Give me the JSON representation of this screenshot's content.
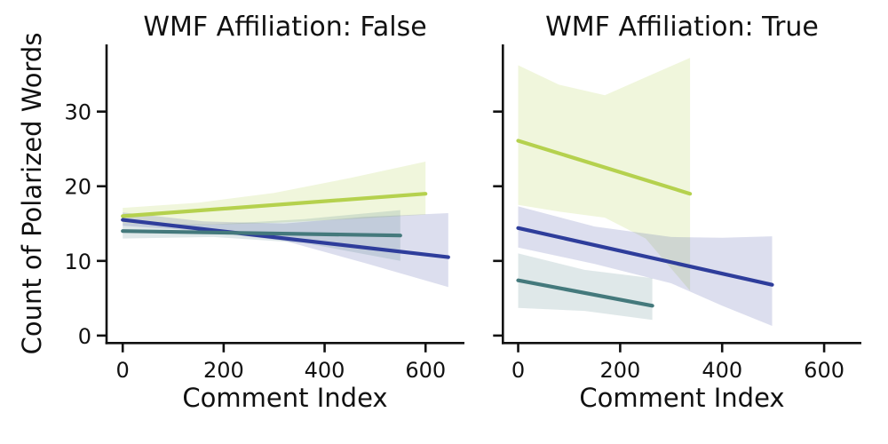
{
  "figure": {
    "ylabel": "Count of Polarized Words",
    "background_color": "#ffffff",
    "axis_color": "#111111"
  },
  "chart_data": [
    {
      "type": "line",
      "title": "WMF Affiliation: False",
      "xlabel": "Comment Index",
      "ylabel": "Count of Polarized Words",
      "xlim": [
        -32,
        677
      ],
      "ylim": [
        -1,
        39
      ],
      "xticks": [
        0,
        200,
        400,
        600
      ],
      "yticks": [
        0,
        10,
        20,
        30
      ],
      "grid": false,
      "legend": "none",
      "series": [
        {
          "name": "green",
          "color": "#b5d14e",
          "band_opacity": 0.2,
          "line": {
            "x": [
              0,
              600
            ],
            "y": [
              16.0,
              19.0
            ]
          },
          "band": {
            "x": [
              0,
              150,
              300,
              450,
              600
            ],
            "upper": [
              17.1,
              17.8,
              19.1,
              21.1,
              23.3
            ],
            "lower": [
              15.0,
              14.8,
              15.1,
              15.6,
              16.2
            ]
          }
        },
        {
          "name": "blue",
          "color": "#2e3d9b",
          "band_opacity": 0.17,
          "line": {
            "x": [
              0,
              645
            ],
            "y": [
              15.5,
              10.5
            ]
          },
          "band": {
            "x": [
              0,
              160,
              320,
              480,
              645
            ],
            "upper": [
              16.5,
              15.3,
              15.0,
              15.9,
              16.4
            ],
            "lower": [
              14.7,
              14.0,
              12.7,
              9.7,
              6.5
            ]
          }
        },
        {
          "name": "teal",
          "color": "#44797c",
          "band_opacity": 0.17,
          "line": {
            "x": [
              0,
              550
            ],
            "y": [
              14.0,
              13.4
            ]
          },
          "band": {
            "x": [
              0,
              180,
              360,
              550
            ],
            "upper": [
              15.0,
              14.9,
              15.6,
              16.8
            ],
            "lower": [
              13.0,
              13.2,
              12.4,
              10.0
            ]
          }
        }
      ]
    },
    {
      "type": "line",
      "title": "WMF Affiliation: True",
      "xlabel": "Comment Index",
      "ylabel": "Count of Polarized Words",
      "xlim": [
        -30,
        673
      ],
      "ylim": [
        -1,
        39
      ],
      "xticks": [
        0,
        200,
        400,
        600
      ],
      "yticks": [
        0,
        10,
        20,
        30
      ],
      "grid": false,
      "legend": "none",
      "series": [
        {
          "name": "green",
          "color": "#b5d14e",
          "band_opacity": 0.2,
          "line": {
            "x": [
              0,
              337
            ],
            "y": [
              26.1,
              19.0
            ]
          },
          "band": {
            "x": [
              0,
              80,
              170,
              250,
              337
            ],
            "upper": [
              36.2,
              33.6,
              32.2,
              34.6,
              37.2
            ],
            "lower": [
              17.5,
              16.6,
              15.8,
              13.0,
              6.0
            ]
          }
        },
        {
          "name": "blue",
          "color": "#2e3d9b",
          "band_opacity": 0.17,
          "line": {
            "x": [
              0,
              498
            ],
            "y": [
              14.4,
              6.8
            ]
          },
          "band": {
            "x": [
              0,
              150,
              300,
              400,
              498
            ],
            "upper": [
              17.3,
              14.6,
              13.2,
              13.1,
              13.3
            ],
            "lower": [
              11.8,
              9.6,
              7.0,
              4.0,
              1.3
            ]
          }
        },
        {
          "name": "teal",
          "color": "#44797c",
          "band_opacity": 0.17,
          "line": {
            "x": [
              0,
              263
            ],
            "y": [
              7.4,
              4.0
            ]
          },
          "band": {
            "x": [
              0,
              130,
              263
            ],
            "upper": [
              11.0,
              8.8,
              7.7
            ],
            "lower": [
              3.7,
              3.3,
              2.1
            ]
          }
        }
      ]
    }
  ]
}
